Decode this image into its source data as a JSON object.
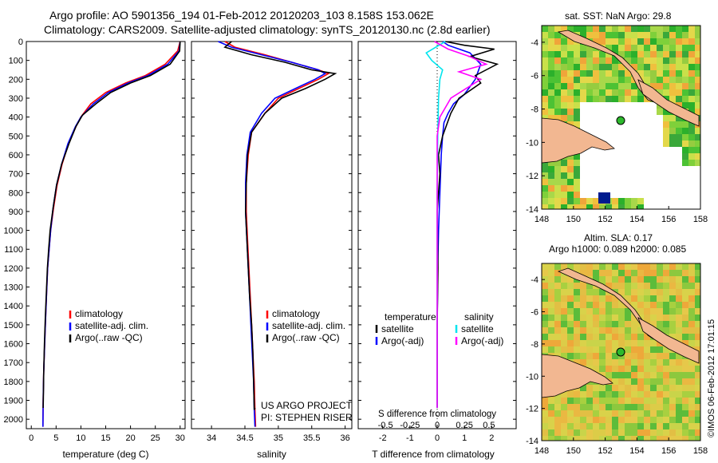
{
  "header": {
    "line1": "Argo profile: AO 5901356_194 01-Feb-2012 20120203_103 8.158S 153.062E",
    "line2": "Climatology: CARS2009. Satellite-adjusted climatology: synTS_20120130.nc (2.8d earlier)"
  },
  "colors": {
    "climatology": "#ff0000",
    "satellite": "#0000ff",
    "argo": "#000000",
    "sat_sal": "#00e5ee",
    "argo_sal": "#ff00ff"
  },
  "depth_ticks": [
    "0",
    "100",
    "200",
    "300",
    "400",
    "500",
    "600",
    "700",
    "800",
    "900",
    "1000",
    "1100",
    "1200",
    "1300",
    "1400",
    "1500",
    "1600",
    "1700",
    "1800",
    "1900",
    "2000"
  ],
  "chart_data": [
    {
      "type": "line",
      "name": "temperature-profile",
      "xlabel": "temperature (deg C)",
      "ylabel": "depth (dbar)",
      "xlim": [
        -1,
        31
      ],
      "ylim": [
        2050,
        0
      ],
      "xticks": [
        "0",
        "5",
        "10",
        "15",
        "20",
        "25",
        "30"
      ],
      "series": [
        {
          "name": "climatology",
          "color": "#ff0000",
          "x": [
            30,
            29.5,
            27,
            23,
            19,
            15,
            12,
            10,
            9,
            7.5,
            6.2,
            5.2,
            4.5,
            3.9,
            3.6,
            3.3,
            3.1,
            2.9,
            2.7,
            2.5,
            2.4,
            2.35
          ],
          "y": [
            0,
            50,
            120,
            180,
            220,
            270,
            330,
            400,
            450,
            540,
            650,
            760,
            880,
            1000,
            1100,
            1200,
            1320,
            1450,
            1600,
            1750,
            1900,
            2040
          ]
        },
        {
          "name": "satellite-adj. clim.",
          "color": "#0000ff",
          "x": [
            30,
            29.8,
            27.5,
            23.5,
            19.5,
            15.5,
            12.5,
            10,
            8.9,
            7.4,
            6.1,
            5.1,
            4.4,
            3.9,
            3.6,
            3.3,
            3.1,
            2.9,
            2.7,
            2.5,
            2.4,
            2.35
          ],
          "y": [
            0,
            50,
            120,
            180,
            220,
            270,
            330,
            400,
            450,
            540,
            650,
            760,
            880,
            1000,
            1100,
            1200,
            1320,
            1450,
            1600,
            1750,
            1900,
            2040
          ]
        },
        {
          "name": "Argo(..raw -QC)",
          "color": "#000000",
          "x": [
            30,
            29.9,
            28,
            24,
            20,
            16,
            13,
            10.3,
            9,
            7.6,
            6.1,
            5.1,
            4.4,
            3.8,
            3.5,
            3.25,
            3.05,
            2.85,
            2.65,
            2.5,
            2.42,
            2.4
          ],
          "y": [
            0,
            50,
            120,
            180,
            220,
            270,
            330,
            390,
            450,
            540,
            650,
            760,
            880,
            1000,
            1100,
            1200,
            1320,
            1450,
            1600,
            1750,
            1900,
            1940
          ]
        }
      ],
      "legend": {
        "placement": "center-right",
        "entries": [
          "climatology",
          "satellite-adj. clim.",
          "Argo(..raw -QC)"
        ]
      }
    },
    {
      "type": "line",
      "name": "salinity-profile",
      "xlabel": "salinity",
      "ylabel": "depth (dbar)",
      "xlim": [
        33.7,
        36.1
      ],
      "ylim": [
        2050,
        0
      ],
      "xticks": [
        "34",
        "34.5",
        "35",
        "35.5",
        "36"
      ],
      "series": [
        {
          "name": "climatology",
          "color": "#ff0000",
          "x": [
            34.2,
            34.35,
            34.8,
            35.2,
            35.6,
            35.75,
            35.6,
            35.3,
            35.0,
            34.8,
            34.6,
            34.55,
            34.52,
            34.52,
            34.54,
            34.56,
            34.58,
            34.6,
            34.62,
            34.64,
            34.65,
            34.66
          ],
          "y": [
            0,
            30,
            70,
            110,
            150,
            170,
            200,
            250,
            300,
            380,
            480,
            600,
            750,
            900,
            1050,
            1200,
            1350,
            1500,
            1650,
            1800,
            1950,
            2040
          ]
        },
        {
          "name": "satellite-adj. clim.",
          "color": "#0000ff",
          "x": [
            34.1,
            34.3,
            34.75,
            35.2,
            35.6,
            35.7,
            35.55,
            35.25,
            34.95,
            34.75,
            34.58,
            34.53,
            34.51,
            34.51,
            34.53,
            34.55,
            34.57,
            34.59,
            34.61,
            34.63,
            34.64,
            34.65
          ],
          "y": [
            0,
            30,
            70,
            110,
            150,
            170,
            200,
            250,
            300,
            380,
            480,
            600,
            750,
            900,
            1050,
            1200,
            1350,
            1500,
            1650,
            1800,
            1950,
            2040
          ]
        },
        {
          "name": "Argo(..raw -QC)",
          "color": "#000000",
          "x": [
            34.3,
            34.2,
            34.6,
            35.1,
            35.5,
            35.85,
            35.7,
            35.4,
            35.05,
            34.8,
            34.6,
            34.54,
            34.52,
            34.51,
            34.53,
            34.55,
            34.57,
            34.6,
            34.62,
            34.63,
            34.64,
            34.65
          ],
          "y": [
            0,
            30,
            70,
            110,
            150,
            170,
            200,
            250,
            300,
            380,
            480,
            600,
            750,
            900,
            1050,
            1200,
            1350,
            1500,
            1650,
            1800,
            1950,
            1940
          ]
        }
      ],
      "legend": {
        "placement": "center-right",
        "entries": [
          "climatology",
          "satellite-adj. clim.",
          "Argo(..raw -QC)"
        ]
      },
      "annotations": [
        "US ARGO PROJECT",
        "PI: STEPHEN RISER"
      ]
    },
    {
      "type": "line",
      "name": "difference-profile",
      "xlabel": "T difference from climatology",
      "xlabel_top": "S difference from climatology",
      "xlim": [
        -2.9,
        2.9
      ],
      "ylim": [
        2050,
        0
      ],
      "xticks": [
        "-2",
        "-1",
        "0",
        "1",
        "2"
      ],
      "xticks_top": [
        "-0.5",
        "-0.25",
        "0",
        "0.25",
        "0.5"
      ],
      "series": [
        {
          "name": "temperature satellite",
          "color": "#0000ff",
          "x": [
            0.2,
            0.4,
            1.2,
            1.6,
            1.4,
            1.0,
            0.6,
            0.4,
            0.25,
            0.2,
            0.15,
            0.1,
            0.05,
            0.02,
            0,
            0
          ],
          "y": [
            0,
            20,
            60,
            120,
            200,
            280,
            330,
            380,
            430,
            500,
            600,
            800,
            1000,
            1200,
            1500,
            1940
          ]
        },
        {
          "name": "temperature Argo(-adj)",
          "color": "#000000",
          "x": [
            0.3,
            1.0,
            2.1,
            1.2,
            2.2,
            1.4,
            1.6,
            0.8,
            0.5,
            0.2,
            0.05,
            0.1,
            0.0,
            0.03,
            0.0,
            0.0
          ],
          "y": [
            0,
            20,
            40,
            80,
            120,
            180,
            220,
            300,
            380,
            500,
            600,
            700,
            900,
            1200,
            1500,
            1940
          ]
        },
        {
          "name": "salinity satellite",
          "color": "#00e5ee",
          "x": [
            0.3,
            -0.4,
            -0.2,
            0.2,
            0.1,
            0.05,
            0.02,
            0,
            0
          ],
          "y": [
            0,
            60,
            100,
            150,
            200,
            300,
            500,
            800,
            1940
          ]
        },
        {
          "name": "salinity Argo(-adj)",
          "color": "#ff00ff",
          "x": [
            -0.1,
            0.4,
            1.2,
            1.8,
            0.8,
            1.6,
            0.5,
            0.1,
            0,
            0
          ],
          "y": [
            0,
            40,
            80,
            120,
            160,
            200,
            300,
            400,
            500,
            1940
          ]
        }
      ],
      "legend": {
        "placement": "center",
        "entries": [
          "temperature",
          "satellite",
          "Argo(-adj)",
          "salinity",
          "satellite",
          "Argo(-adj)"
        ]
      }
    },
    {
      "type": "heatmap",
      "name": "sst-map",
      "title": "sat. SST: NaN Argo: 29.8",
      "xlim": [
        148,
        158
      ],
      "ylim": [
        -14,
        -3
      ],
      "xticks": [
        "148",
        "150",
        "152",
        "154",
        "156",
        "158"
      ],
      "yticks": [
        "-4",
        "-6",
        "-8",
        "-10",
        "-12",
        "-14"
      ],
      "argo_position": [
        153.062,
        -8.158
      ]
    },
    {
      "type": "heatmap",
      "name": "sla-map",
      "title": "Altim. SLA: 0.17",
      "subtitle": "Argo h1000: 0.089 h2000: 0.085",
      "xlim": [
        148,
        158
      ],
      "ylim": [
        -14,
        -3
      ],
      "xticks": [
        "148",
        "150",
        "152",
        "154",
        "156",
        "158"
      ],
      "yticks": [
        "-4",
        "-6",
        "-8",
        "-10",
        "-12",
        "-14"
      ],
      "argo_position": [
        153.062,
        -8.158
      ]
    }
  ],
  "watermark": "©IMOS 06-Feb-2012 17:01:15"
}
